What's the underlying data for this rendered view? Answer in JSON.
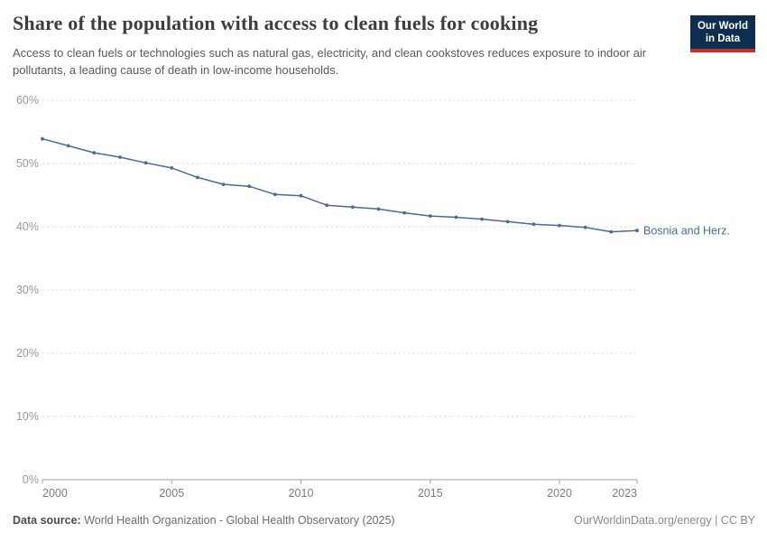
{
  "header": {
    "title": "Share of the population with access to clean fuels for cooking",
    "subtitle": "Access to clean fuels or technologies such as natural gas, electricity, and clean cookstoves reduces exposure to indoor air pollutants, a leading cause of death in low-income households.",
    "logo": {
      "line1": "Our World",
      "line2": "in Data",
      "bg_color": "#0d2d51",
      "stripe_color": "#ce2c26"
    }
  },
  "chart_data": {
    "type": "line",
    "title": "Share of the population with access to clean fuels for cooking",
    "x": [
      2000,
      2001,
      2002,
      2003,
      2004,
      2005,
      2006,
      2007,
      2008,
      2009,
      2010,
      2011,
      2012,
      2013,
      2014,
      2015,
      2016,
      2017,
      2018,
      2019,
      2020,
      2021,
      2022,
      2023
    ],
    "series": [
      {
        "name": "Bosnia and Herz.",
        "color": "#4C6A9C",
        "values": [
          53.9,
          52.8,
          51.7,
          51.0,
          50.1,
          49.3,
          47.8,
          46.7,
          46.4,
          45.1,
          44.9,
          43.4,
          43.1,
          42.8,
          42.2,
          41.7,
          41.5,
          41.2,
          40.8,
          40.4,
          40.2,
          39.9,
          39.2,
          39.4
        ]
      }
    ],
    "xlim": [
      2000,
      2023
    ],
    "ylim": [
      0,
      60
    ],
    "xticks": [
      2000,
      2005,
      2010,
      2015,
      2020,
      2023
    ],
    "yticks": [
      0,
      10,
      20,
      30,
      40,
      50,
      60
    ],
    "ytick_suffix": "%",
    "grid": "horizontal-dashed",
    "legend_position": "label-at-line-end",
    "colors": {
      "gridline": "#dcdcdc",
      "axis": "#a3a3a3",
      "ytick_label": "#999999",
      "xtick_label": "#7d7d7d"
    }
  },
  "footer": {
    "source_label": "Data source:",
    "source_text": " World Health Organization - Global Health Observatory (2025)",
    "credit": "OurWorldinData.org/energy | CC BY"
  }
}
